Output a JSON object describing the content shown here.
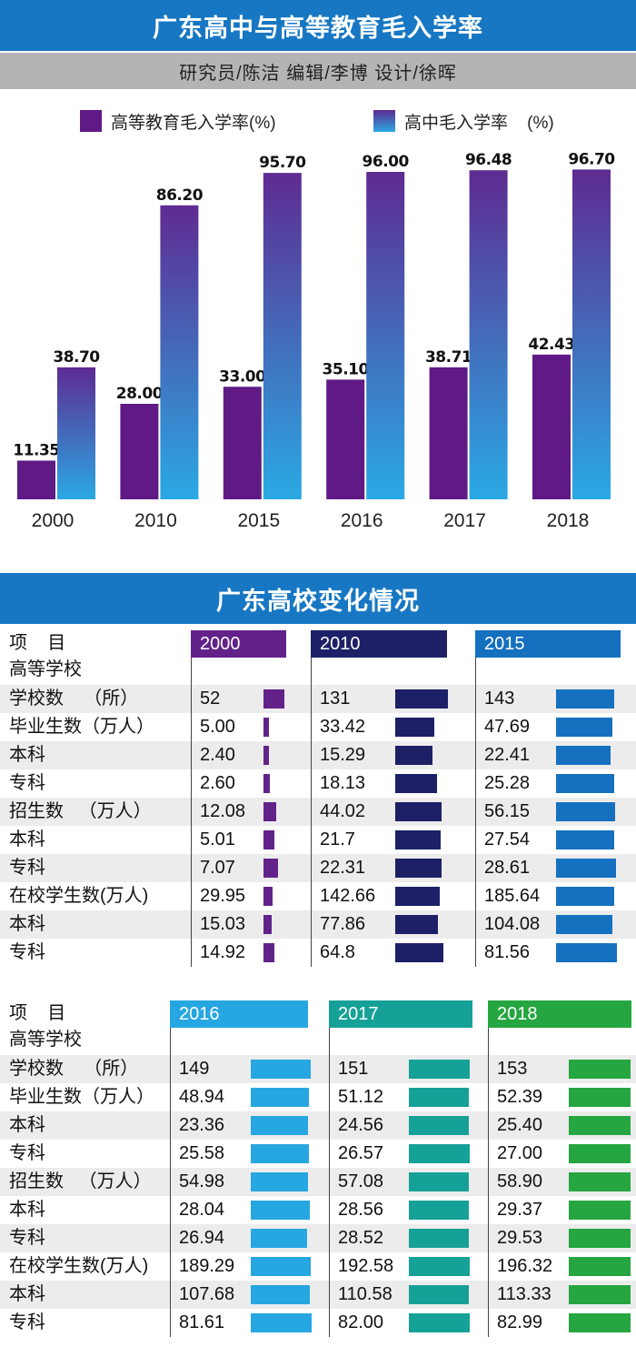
{
  "title": "广东高中与高等教育毛入学率",
  "credits": "研究员/陈洁  编辑/李博  设计/徐晖",
  "legend": [
    {
      "label": "高等教育毛入学率(%)",
      "color": "#5f1a86"
    },
    {
      "label": "高中毛入学率    (%)",
      "color": "#2aa9e4"
    }
  ],
  "chart_data": {
    "type": "bar",
    "categories": [
      "2000",
      "2010",
      "2015",
      "2016",
      "2017",
      "2018"
    ],
    "series": [
      {
        "name": "高等教育毛入学率(%)",
        "values": [
          11.35,
          28.0,
          33.0,
          35.1,
          38.71,
          42.43
        ],
        "labels": [
          "11.35",
          "28.00",
          "33.00",
          "35.10",
          "38.71",
          "42.43"
        ],
        "color": "#5f1a86"
      },
      {
        "name": "高中毛入学率    (%)",
        "values": [
          38.7,
          86.2,
          95.7,
          96.0,
          96.48,
          96.7
        ],
        "labels": [
          "38.70",
          "86.20",
          "95.70",
          "96.00",
          "96.48",
          "96.70"
        ],
        "color_top": "#5e2b91",
        "color_bottom": "#2aa9e4"
      }
    ],
    "ylim": [
      0,
      100
    ]
  },
  "section_title": "广东高校变化情况",
  "table": {
    "header_label": "项    目",
    "sub_label": "高等学校",
    "row_labels": [
      "学校数    （所）",
      "毕业生数（万人）",
      "本科",
      "专科",
      "招生数   （万人）",
      "本科",
      "专科",
      "在校学生数(万人)",
      "本科",
      "专科"
    ],
    "max_values": [
      153,
      52.39,
      25.4,
      27.0,
      58.9,
      29.37,
      29.53,
      196.32,
      113.33,
      82.99
    ],
    "groups": [
      {
        "columns": [
          {
            "year": "2000",
            "color": "#62228a",
            "values": [
              "52",
              "5.00",
              "2.40",
              "2.60",
              "12.08",
              "5.01",
              "7.07",
              "29.95",
              "15.03",
              "14.92"
            ]
          },
          {
            "year": "2010",
            "color": "#1d2066",
            "values": [
              "131",
              "33.42",
              "15.29",
              "18.13",
              "44.02",
              "21.7",
              "22.31",
              "142.66",
              "77.86",
              "64.8"
            ]
          },
          {
            "year": "2015",
            "color": "#1570bf",
            "values": [
              "143",
              "47.69",
              "22.41",
              "25.28",
              "56.15",
              "27.54",
              "28.61",
              "185.64",
              "104.08",
              "81.56"
            ]
          }
        ]
      },
      {
        "columns": [
          {
            "year": "2016",
            "color": "#27a7e1",
            "values": [
              "149",
              "48.94",
              "23.36",
              "25.58",
              "54.98",
              "28.04",
              "26.94",
              "189.29",
              "107.68",
              "81.61"
            ]
          },
          {
            "year": "2017",
            "color": "#16a198",
            "values": [
              "151",
              "51.12",
              "24.56",
              "26.57",
              "57.08",
              "28.56",
              "28.52",
              "192.58",
              "110.58",
              "82.00"
            ]
          },
          {
            "year": "2018",
            "color": "#25a640",
            "values": [
              "153",
              "52.39",
              "25.40",
              "27.00",
              "58.90",
              "29.37",
              "29.53",
              "196.32",
              "113.33",
              "82.99"
            ]
          }
        ]
      }
    ]
  }
}
